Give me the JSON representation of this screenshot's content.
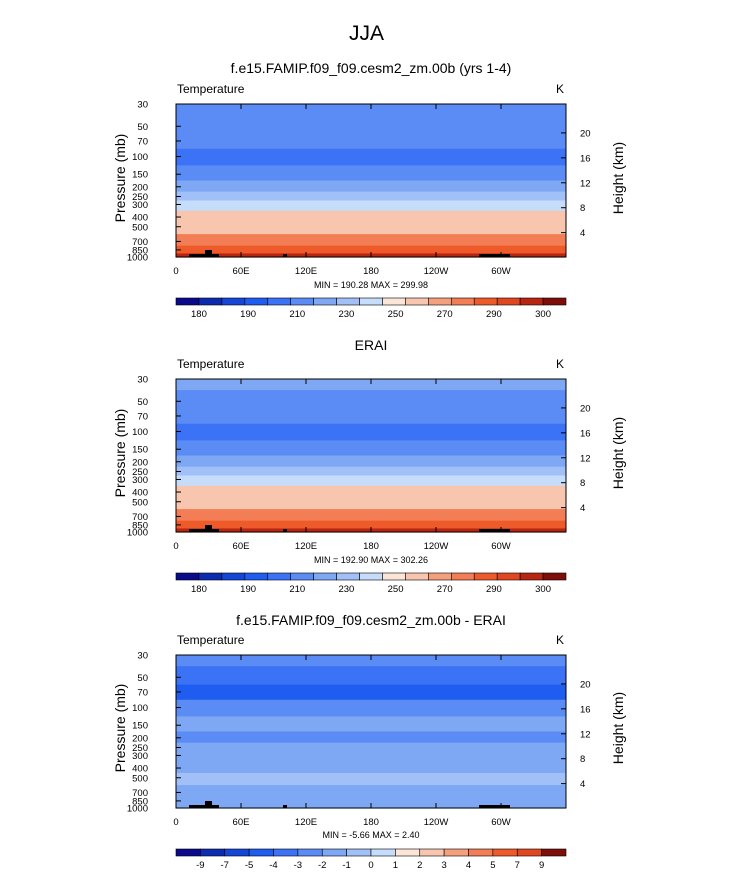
{
  "title": "JJA",
  "chart_data": [
    {
      "type": "heatmap",
      "title": "f.e15.FAMIP.f09_f09.cesm2_zm.00b (yrs 1-4)",
      "variable": "Temperature",
      "units": "K",
      "ylabel": "Pressure (mb)",
      "ylabel_right": "Height (km)",
      "x_ticks": [
        "0",
        "60E",
        "120E",
        "180",
        "120W",
        "60W"
      ],
      "y_ticks": [
        "30",
        "50",
        "70",
        "100",
        "150",
        "200",
        "250",
        "300",
        "400",
        "500",
        "700",
        "850",
        "1000"
      ],
      "height_ticks": [
        "20",
        "16",
        "12",
        "8",
        "4"
      ],
      "stats": "MIN = 190.28  MAX = 299.98",
      "colorbar_labels": [
        "180",
        "190",
        "210",
        "230",
        "250",
        "270",
        "290",
        "300"
      ],
      "profile": [
        {
          "pressure": 30,
          "value": 205
        },
        {
          "pressure": 50,
          "value": 207
        },
        {
          "pressure": 70,
          "value": 200
        },
        {
          "pressure": 100,
          "value": 197
        },
        {
          "pressure": 150,
          "value": 205
        },
        {
          "pressure": 200,
          "value": 215
        },
        {
          "pressure": 250,
          "value": 225
        },
        {
          "pressure": 300,
          "value": 235
        },
        {
          "pressure": 400,
          "value": 250
        },
        {
          "pressure": 500,
          "value": 258
        },
        {
          "pressure": 700,
          "value": 275
        },
        {
          "pressure": 850,
          "value": 287
        },
        {
          "pressure": 1000,
          "value": 295
        }
      ]
    },
    {
      "type": "heatmap",
      "title": "ERAI",
      "variable": "Temperature",
      "units": "K",
      "ylabel": "Pressure (mb)",
      "ylabel_right": "Height (km)",
      "x_ticks": [
        "0",
        "60E",
        "120E",
        "180",
        "120W",
        "60W"
      ],
      "y_ticks": [
        "30",
        "50",
        "70",
        "100",
        "150",
        "200",
        "250",
        "300",
        "400",
        "500",
        "700",
        "850",
        "1000"
      ],
      "height_ticks": [
        "20",
        "16",
        "12",
        "8",
        "4"
      ],
      "stats": "MIN = 192.90  MAX = 302.26",
      "colorbar_labels": [
        "180",
        "190",
        "210",
        "230",
        "250",
        "270",
        "290",
        "300"
      ],
      "profile": [
        {
          "pressure": 30,
          "value": 211
        },
        {
          "pressure": 50,
          "value": 208
        },
        {
          "pressure": 70,
          "value": 204
        },
        {
          "pressure": 100,
          "value": 198
        },
        {
          "pressure": 150,
          "value": 207
        },
        {
          "pressure": 200,
          "value": 216
        },
        {
          "pressure": 250,
          "value": 226
        },
        {
          "pressure": 300,
          "value": 236
        },
        {
          "pressure": 400,
          "value": 251
        },
        {
          "pressure": 500,
          "value": 259
        },
        {
          "pressure": 700,
          "value": 276
        },
        {
          "pressure": 850,
          "value": 289
        },
        {
          "pressure": 1000,
          "value": 297
        }
      ]
    },
    {
      "type": "heatmap",
      "title": "f.e15.FAMIP.f09_f09.cesm2_zm.00b - ERAI",
      "variable": "Temperature",
      "units": "K",
      "ylabel": "Pressure (mb)",
      "ylabel_right": "Height (km)",
      "x_ticks": [
        "0",
        "60E",
        "120E",
        "180",
        "120W",
        "60W"
      ],
      "y_ticks": [
        "30",
        "50",
        "70",
        "100",
        "150",
        "200",
        "250",
        "300",
        "400",
        "500",
        "700",
        "850",
        "1000"
      ],
      "height_ticks": [
        "20",
        "16",
        "12",
        "8",
        "4"
      ],
      "stats": "MIN = -5.66  MAX =  2.40",
      "colorbar_labels": [
        "-9",
        "-7",
        "-5",
        "-4",
        "-3",
        "-2",
        "-1",
        "0",
        "1",
        "2",
        "3",
        "4",
        "5",
        "7",
        "9"
      ],
      "profile": [
        {
          "pressure": 30,
          "value": -2.5
        },
        {
          "pressure": 50,
          "value": -3.5
        },
        {
          "pressure": 70,
          "value": -4.5
        },
        {
          "pressure": 100,
          "value": -2.5
        },
        {
          "pressure": 150,
          "value": -1.5
        },
        {
          "pressure": 200,
          "value": -2.5
        },
        {
          "pressure": 250,
          "value": -1.5
        },
        {
          "pressure": 300,
          "value": -1.5
        },
        {
          "pressure": 400,
          "value": -1.5
        },
        {
          "pressure": 500,
          "value": -0.5
        },
        {
          "pressure": 700,
          "value": -1.5
        },
        {
          "pressure": 850,
          "value": -1.5
        },
        {
          "pressure": 1000,
          "value": -1.5
        }
      ]
    }
  ],
  "colors": {
    "temp_palette": [
      "#0a0a8a",
      "#0c2bb0",
      "#1446d8",
      "#1f5cf0",
      "#3c72f5",
      "#5b8bf4",
      "#7ea7f4",
      "#a0c0f7",
      "#c6dcfb",
      "#fbe5d7",
      "#f8c6ae",
      "#f5a07d",
      "#f37e55",
      "#ef5a2a",
      "#e0471e",
      "#b82612",
      "#7d0e0a"
    ],
    "diff_palette": [
      "#0a0a8a",
      "#0c2bb0",
      "#1446d8",
      "#1f5cf0",
      "#3c72f5",
      "#5b8bf4",
      "#7ea7f4",
      "#a0c0f7",
      "#c6dcfb",
      "#fbe5d7",
      "#f8c6ae",
      "#f5a07d",
      "#f37e55",
      "#ef5a2a",
      "#e0471e",
      "#7d0e0a"
    ],
    "terrain": "#000000"
  }
}
